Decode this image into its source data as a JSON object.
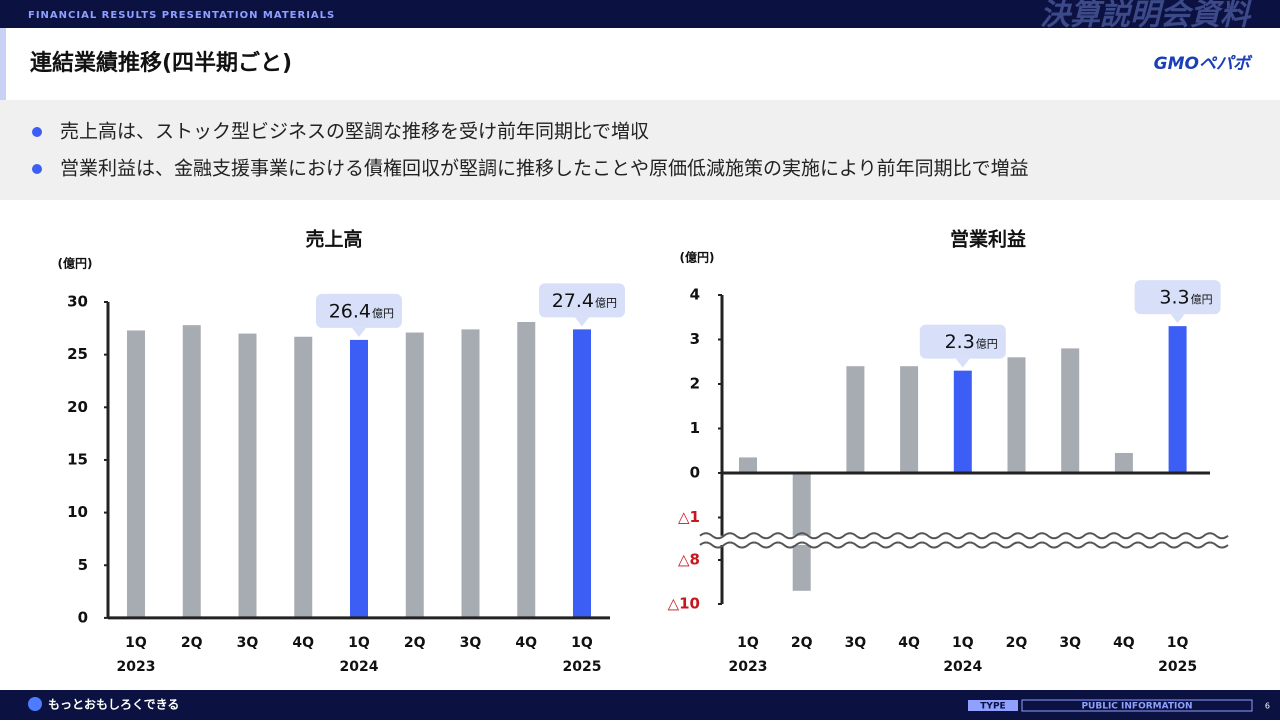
{
  "header": {
    "banner": "FINANCIAL RESULTS PRESENTATION MATERIALS",
    "banner_title": "決算説明会資料",
    "title": "連結業績推移(四半期ごと)",
    "logo": "GMOペパボ"
  },
  "bullets": [
    "売上高は、ストック型ビジネスの堅調な推移を受け前年同期比で増収",
    "営業利益は、金融支援事業における債権回収が堅調に推移したことや原価低減施策の実施により前年同期比で増益"
  ],
  "chart_data": [
    {
      "type": "bar",
      "title": "売上高",
      "y_label": "(億円)",
      "label_unit": "億円",
      "categories": [
        "1Q",
        "2Q",
        "3Q",
        "4Q",
        "1Q",
        "2Q",
        "3Q",
        "4Q",
        "1Q"
      ],
      "years": [
        "2023",
        null,
        null,
        null,
        "2024",
        null,
        null,
        null,
        "2025"
      ],
      "values": [
        27.3,
        27.8,
        27.0,
        26.7,
        26.4,
        27.1,
        27.4,
        28.1,
        27.4
      ],
      "colors": [
        "#a7abb2",
        "#a7abb2",
        "#a7abb2",
        "#a7abb2",
        "#3d5ef5",
        "#a7abb2",
        "#a7abb2",
        "#a7abb2",
        "#3d5ef5"
      ],
      "annotated": [
        4,
        8
      ],
      "ylim": [
        0,
        30
      ],
      "yticks": [
        0,
        5,
        10,
        15,
        20,
        25,
        30
      ]
    },
    {
      "type": "bar",
      "title": "営業利益",
      "y_label": "(億円)",
      "label_unit": "億円",
      "categories": [
        "1Q",
        "2Q",
        "3Q",
        "4Q",
        "1Q",
        "2Q",
        "3Q",
        "4Q",
        "1Q"
      ],
      "years": [
        "2023",
        null,
        null,
        null,
        "2024",
        null,
        null,
        null,
        "2025"
      ],
      "values": [
        0.35,
        -9.4,
        2.4,
        2.4,
        2.3,
        2.6,
        2.8,
        0.45,
        3.3
      ],
      "colors": [
        "#a7abb2",
        "#a7abb2",
        "#a7abb2",
        "#a7abb2",
        "#3d5ef5",
        "#a7abb2",
        "#a7abb2",
        "#a7abb2",
        "#3d5ef5"
      ],
      "annotated": [
        4,
        8
      ],
      "ylim": [
        -10,
        4
      ],
      "axis_break": [
        -1.5,
        -7.5
      ],
      "yticks": [
        {
          "value": -10,
          "label": "△10"
        },
        {
          "value": -8,
          "label": "△8"
        },
        {
          "value": -1,
          "label": "△1"
        },
        0,
        1,
        2,
        3,
        4
      ]
    }
  ],
  "footer": {
    "slogan": "もっとおもしろくできる",
    "type": "TYPE",
    "info": "PUBLIC INFORMATION",
    "page": "6"
  }
}
